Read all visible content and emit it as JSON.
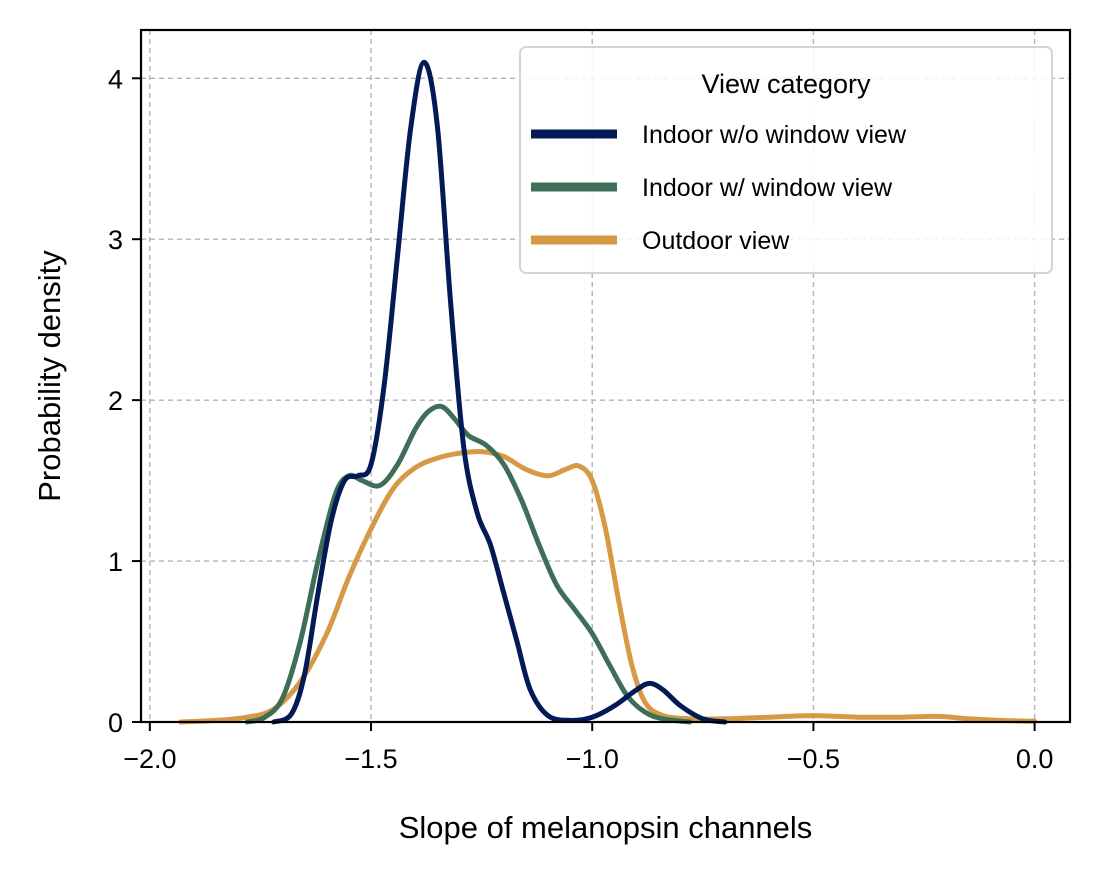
{
  "chart_data": {
    "type": "line",
    "xlabel": "Slope of melanopsin channels",
    "ylabel": "Probability density",
    "xlim": [
      -2.02,
      0.08
    ],
    "ylim": [
      0,
      4.3
    ],
    "xticks": [
      -2.0,
      -1.5,
      -1.0,
      -0.5,
      0.0
    ],
    "xtick_labels": [
      "−2.0",
      "−1.5",
      "−1.0",
      "−0.5",
      "0.0"
    ],
    "yticks": [
      0,
      1,
      2,
      3,
      4
    ],
    "ytick_labels": [
      "0",
      "1",
      "2",
      "3",
      "4"
    ],
    "grid": true,
    "legend": {
      "title": "View category",
      "placement": "top-right"
    },
    "series": [
      {
        "name": "Indoor w/o window view",
        "color": "#041a57",
        "points": [
          [
            -1.72,
            0.0
          ],
          [
            -1.68,
            0.05
          ],
          [
            -1.65,
            0.3
          ],
          [
            -1.62,
            0.8
          ],
          [
            -1.59,
            1.25
          ],
          [
            -1.56,
            1.5
          ],
          [
            -1.53,
            1.53
          ],
          [
            -1.5,
            1.6
          ],
          [
            -1.47,
            2.1
          ],
          [
            -1.44,
            2.9
          ],
          [
            -1.41,
            3.7
          ],
          [
            -1.38,
            4.1
          ],
          [
            -1.35,
            3.7
          ],
          [
            -1.32,
            2.6
          ],
          [
            -1.29,
            1.7
          ],
          [
            -1.26,
            1.3
          ],
          [
            -1.23,
            1.1
          ],
          [
            -1.2,
            0.8
          ],
          [
            -1.17,
            0.5
          ],
          [
            -1.14,
            0.2
          ],
          [
            -1.1,
            0.04
          ],
          [
            -1.05,
            0.01
          ],
          [
            -1.0,
            0.03
          ],
          [
            -0.95,
            0.1
          ],
          [
            -0.9,
            0.2
          ],
          [
            -0.87,
            0.24
          ],
          [
            -0.84,
            0.2
          ],
          [
            -0.8,
            0.1
          ],
          [
            -0.75,
            0.02
          ],
          [
            -0.7,
            0.0
          ]
        ]
      },
      {
        "name": "Indoor w/ window view",
        "color": "#3e6e58",
        "points": [
          [
            -1.78,
            0.0
          ],
          [
            -1.74,
            0.03
          ],
          [
            -1.7,
            0.15
          ],
          [
            -1.66,
            0.5
          ],
          [
            -1.62,
            1.0
          ],
          [
            -1.58,
            1.42
          ],
          [
            -1.55,
            1.53
          ],
          [
            -1.52,
            1.5
          ],
          [
            -1.48,
            1.47
          ],
          [
            -1.44,
            1.6
          ],
          [
            -1.4,
            1.82
          ],
          [
            -1.37,
            1.93
          ],
          [
            -1.34,
            1.96
          ],
          [
            -1.31,
            1.88
          ],
          [
            -1.28,
            1.78
          ],
          [
            -1.24,
            1.72
          ],
          [
            -1.2,
            1.6
          ],
          [
            -1.16,
            1.38
          ],
          [
            -1.12,
            1.1
          ],
          [
            -1.08,
            0.85
          ],
          [
            -1.04,
            0.7
          ],
          [
            -1.0,
            0.55
          ],
          [
            -0.96,
            0.35
          ],
          [
            -0.92,
            0.16
          ],
          [
            -0.88,
            0.06
          ],
          [
            -0.84,
            0.02
          ],
          [
            -0.78,
            0.0
          ]
        ]
      },
      {
        "name": "Outdoor view",
        "color": "#d69a46",
        "points": [
          [
            -1.93,
            0.0
          ],
          [
            -1.85,
            0.01
          ],
          [
            -1.78,
            0.03
          ],
          [
            -1.72,
            0.08
          ],
          [
            -1.66,
            0.25
          ],
          [
            -1.6,
            0.55
          ],
          [
            -1.55,
            0.9
          ],
          [
            -1.5,
            1.2
          ],
          [
            -1.45,
            1.45
          ],
          [
            -1.4,
            1.58
          ],
          [
            -1.35,
            1.64
          ],
          [
            -1.3,
            1.67
          ],
          [
            -1.25,
            1.68
          ],
          [
            -1.2,
            1.65
          ],
          [
            -1.15,
            1.57
          ],
          [
            -1.1,
            1.53
          ],
          [
            -1.06,
            1.57
          ],
          [
            -1.03,
            1.59
          ],
          [
            -1.0,
            1.5
          ],
          [
            -0.97,
            1.2
          ],
          [
            -0.94,
            0.75
          ],
          [
            -0.91,
            0.35
          ],
          [
            -0.88,
            0.12
          ],
          [
            -0.84,
            0.04
          ],
          [
            -0.78,
            0.02
          ],
          [
            -0.7,
            0.02
          ],
          [
            -0.6,
            0.03
          ],
          [
            -0.5,
            0.04
          ],
          [
            -0.4,
            0.03
          ],
          [
            -0.3,
            0.03
          ],
          [
            -0.22,
            0.035
          ],
          [
            -0.15,
            0.02
          ],
          [
            -0.08,
            0.01
          ],
          [
            0.0,
            0.005
          ]
        ]
      }
    ]
  }
}
